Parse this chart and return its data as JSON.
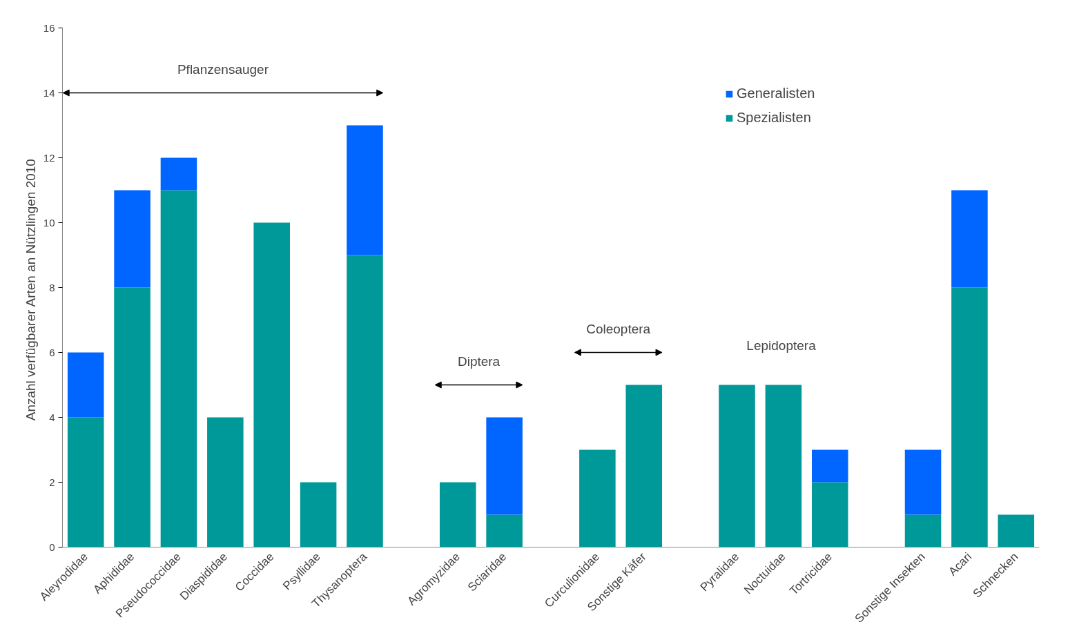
{
  "chart_data": {
    "type": "bar",
    "stacked": true,
    "ylabel": "Anzahl verfügbarer Arten an Nützlingen  2010",
    "categories": [
      "Aleyrodidae",
      "Aphididae",
      "Pseudococcidae",
      "Diaspididae",
      "Coccidae",
      "Psyllidae",
      "Thysanoptera",
      null,
      "Agromyzidae",
      "Sciaridae",
      null,
      "Curculionidae",
      "Sonstige Käfer",
      null,
      "Pyralidae",
      "Noctuidae",
      "Tortricidae",
      null,
      "Sonstige Insekten",
      "Acari",
      "Schnecken"
    ],
    "series": [
      {
        "name": "Spezialisten",
        "color": "#009999",
        "values": [
          4,
          8,
          11,
          4,
          10,
          2,
          9,
          null,
          2,
          1,
          null,
          3,
          5,
          null,
          5,
          5,
          2,
          null,
          1,
          8,
          1
        ]
      },
      {
        "name": "Generalisten",
        "color": "#0066ff",
        "values": [
          2,
          3,
          1,
          null,
          null,
          null,
          4,
          null,
          null,
          3,
          null,
          null,
          null,
          null,
          null,
          null,
          1,
          null,
          2,
          3,
          null
        ]
      }
    ],
    "ylim": [
      0,
      16
    ],
    "yticks": [
      0,
      2,
      4,
      6,
      8,
      10,
      12,
      14,
      16
    ],
    "grid": false,
    "legend": "top right",
    "annotations": [
      "Pflanzensauger",
      "Diptera",
      "Coleoptera",
      "Lepidoptera"
    ]
  }
}
